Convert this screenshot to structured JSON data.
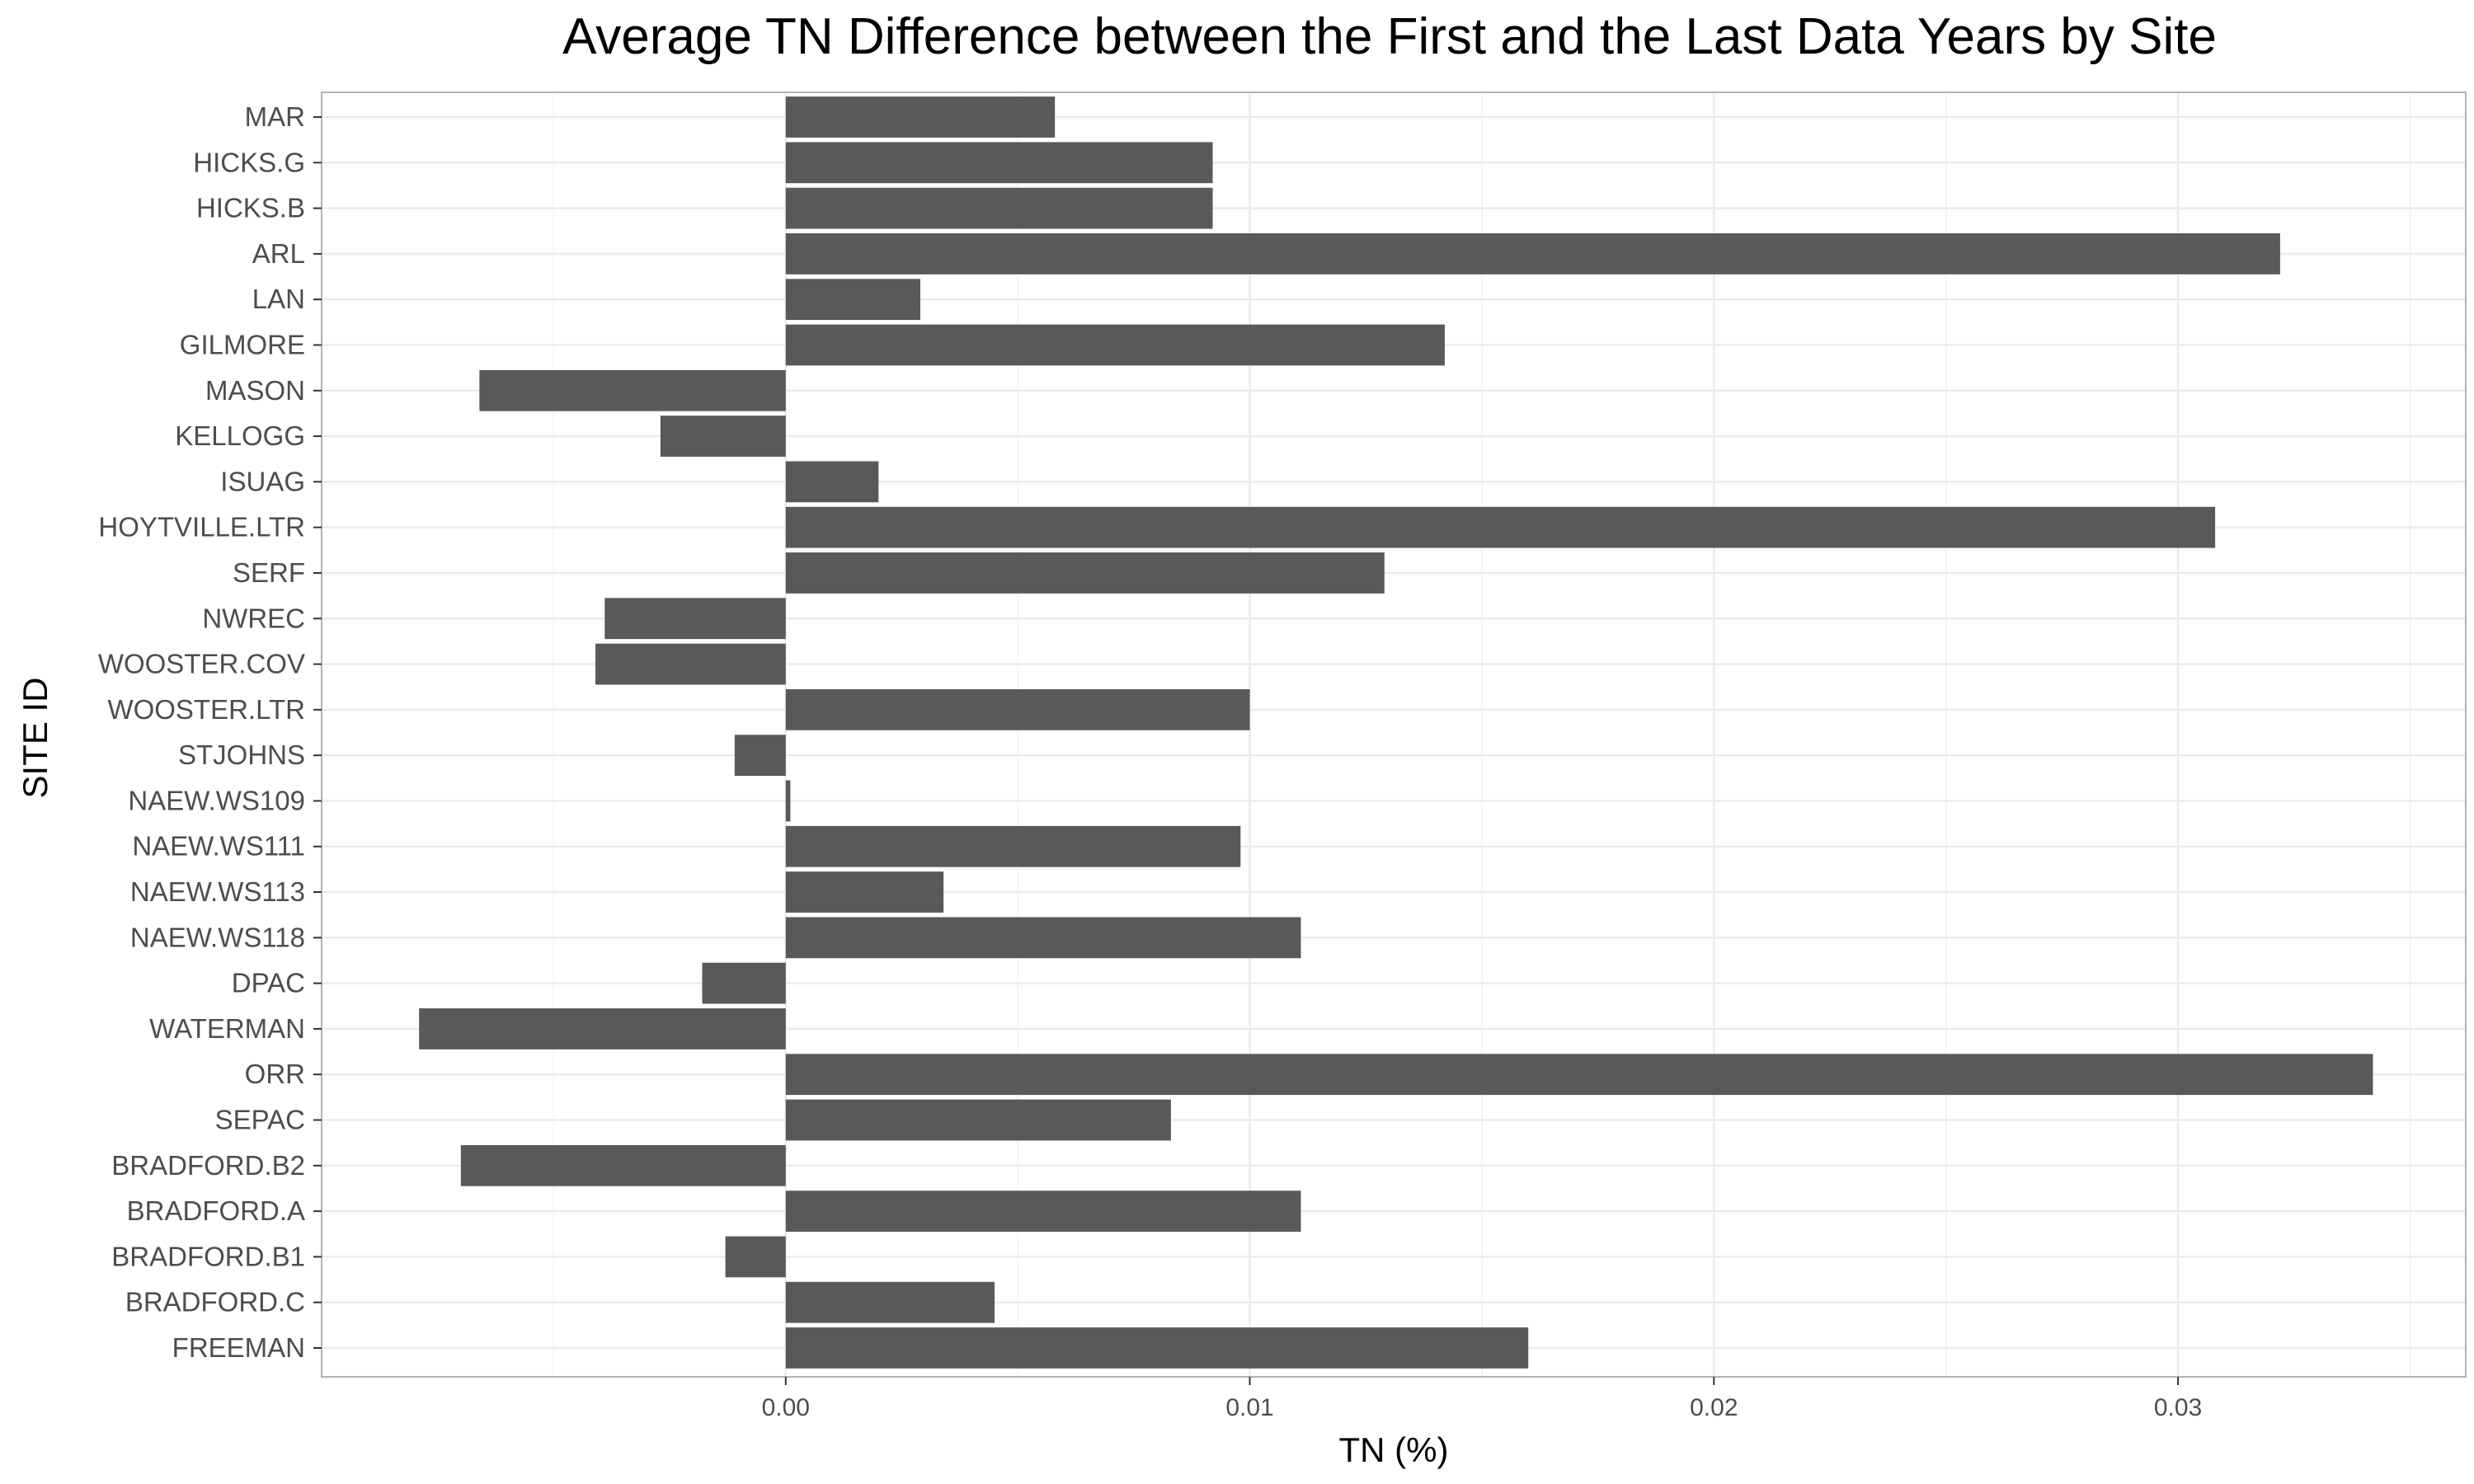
{
  "chart_data": {
    "type": "bar",
    "orientation": "horizontal",
    "title": "Average TN Difference between the First and the Last Data Years by Site",
    "xlabel": "TN (%)",
    "ylabel": "SITE ID",
    "xlim": [
      -0.01,
      0.0362
    ],
    "xticks": [
      0.0,
      0.01,
      0.02,
      0.03
    ],
    "xtick_labels": [
      "0.00",
      "0.01",
      "0.02",
      "0.03"
    ],
    "grid": true,
    "legend": "none",
    "bar_color": "#595959",
    "grid_color": "#ebebeb",
    "categories": [
      "MAR",
      "HICKS.G",
      "HICKS.B",
      "ARL",
      "LAN",
      "GILMORE",
      "MASON",
      "KELLOGG",
      "ISUAG",
      "HOYTVILLE.LTR",
      "SERF",
      "NWREC",
      "WOOSTER.COV",
      "WOOSTER.LTR",
      "STJOHNS",
      "NAEW.WS109",
      "NAEW.WS111",
      "NAEW.WS113",
      "NAEW.WS118",
      "DPAC",
      "WATERMAN",
      "ORR",
      "SEPAC",
      "BRADFORD.B2",
      "BRADFORD.A",
      "BRADFORD.B1",
      "BRADFORD.C",
      "FREEMAN"
    ],
    "values": [
      0.0058,
      0.0092,
      0.0092,
      0.0322,
      0.0029,
      0.0142,
      -0.0066,
      -0.0027,
      0.002,
      0.0308,
      0.0129,
      -0.0039,
      -0.0041,
      0.01,
      -0.0011,
      0.0001,
      0.0098,
      0.0034,
      0.0111,
      -0.0018,
      -0.0079,
      0.0342,
      0.0083,
      -0.007,
      0.0111,
      -0.0013,
      0.0045,
      0.016
    ]
  }
}
